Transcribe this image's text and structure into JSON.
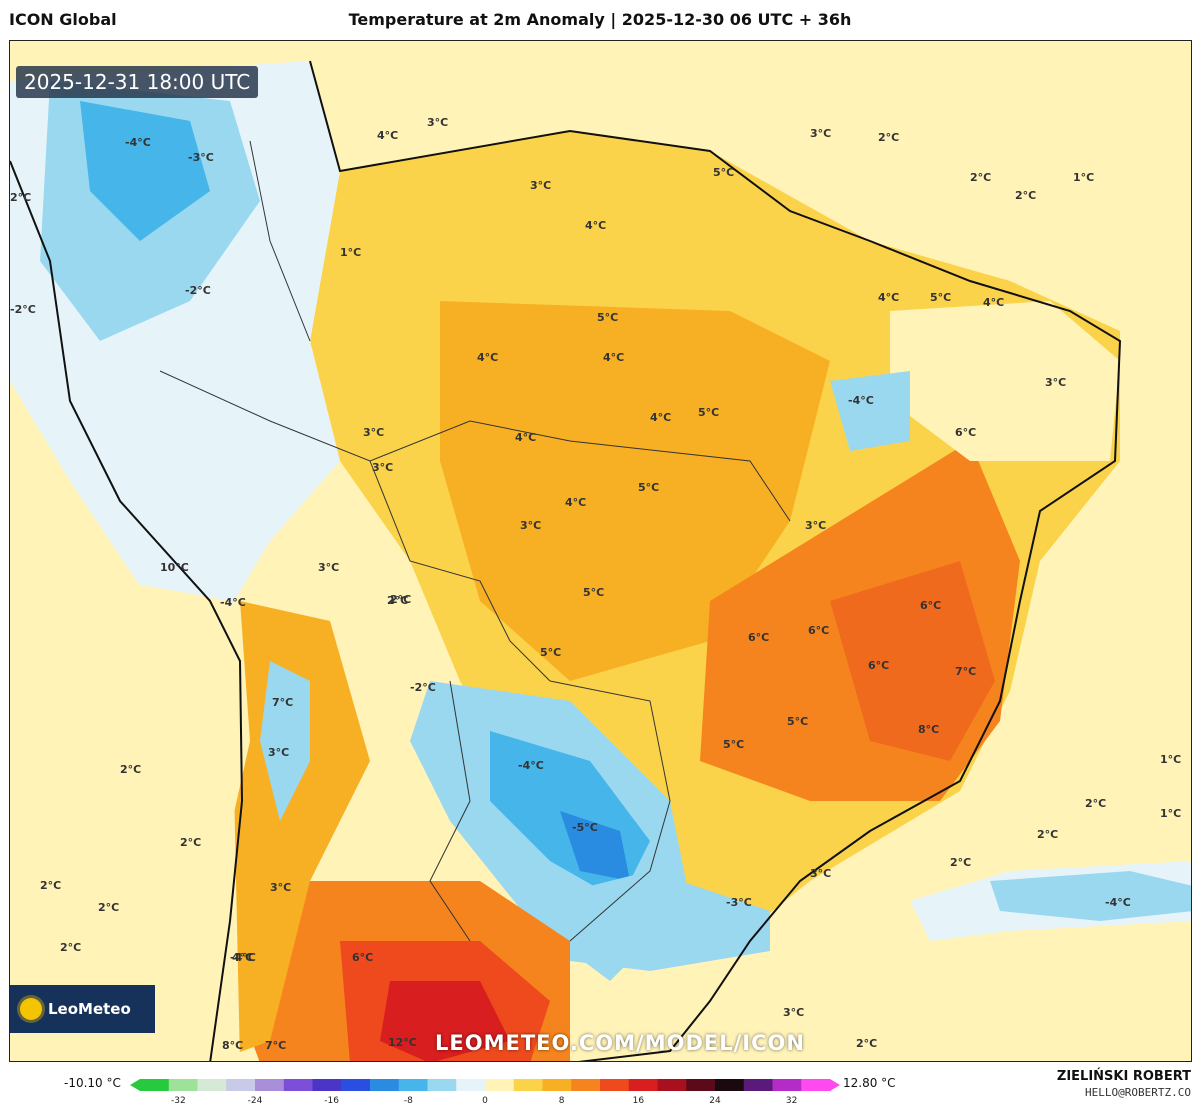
{
  "header": {
    "model": "ICON Global",
    "title": "Temperature at 2m Anomaly | 2025-12-30 06 UTC + 36h"
  },
  "map": {
    "valid_time": "2025-12-31 18:00 UTC",
    "watermark": "LEOMETEO.COM/MODEL/ICON",
    "logo_text": "LeoMeteo",
    "isotherm_labels": [
      "2°C",
      "-4°C",
      "-3°C",
      "1°C",
      "3°C",
      "-2°C",
      "4°C",
      "3°C",
      "3°C",
      "5°C",
      "4°C",
      "2°C",
      "2°C",
      "2°C",
      "1°C",
      "-2°C",
      "4°C",
      "5°C",
      "4°C",
      "4°C",
      "5°C",
      "4°C",
      "-4°C",
      "3°C",
      "4°C",
      "5°C",
      "6°C",
      "3°C",
      "3°C",
      "4°C",
      "5°C",
      "3°C",
      "4°C",
      "3°C",
      "10°C",
      "-4°C",
      "3°C",
      "2°C",
      "5°C",
      "5°C",
      "2°C",
      "6°C",
      "6°C",
      "6°C",
      "6°C",
      "7°C",
      "3°C",
      "-2°C",
      "7°C",
      "5°C",
      "5°C",
      "8°C",
      "2°C",
      "3°C",
      "-4°C",
      "2°C",
      "1°C",
      "2°C",
      "-5°C",
      "2°C",
      "1°C",
      "2°C",
      "-4°C",
      "2°C",
      "3°C",
      "-3°C",
      "2°C",
      "-4°C",
      "2°C",
      "6°C",
      "4°C",
      "3°C",
      "8°C",
      "7°C",
      "12°C",
      "2°C"
    ]
  },
  "colorbar": {
    "min_label": "-10.10 °C",
    "max_label": "12.80 °C",
    "ticks": [
      "-32",
      "-24",
      "-16",
      "-8",
      "0",
      "8",
      "16",
      "24",
      "32"
    ],
    "tick_values": [
      -32,
      -24,
      -16,
      -8,
      0,
      8,
      16,
      24,
      32
    ],
    "range": [
      -36,
      36
    ],
    "colors": [
      "#27c93f",
      "#9ee29a",
      "#d6e9d6",
      "#c9c9e8",
      "#a98fd8",
      "#7d4fd8",
      "#4b35c6",
      "#2a4fe0",
      "#2a8ce0",
      "#45b5ea",
      "#9ad8f0",
      "#e6f4fa",
      "#fff3b8",
      "#fbd34a",
      "#f7b023",
      "#f5841e",
      "#ee4a1e",
      "#d81e1e",
      "#a8101e",
      "#5a0a18",
      "#1a0a10",
      "#5a1a7a",
      "#b42cc8",
      "#ff4af0"
    ]
  },
  "footer": {
    "author": "ZIELIŃSKI ROBERT",
    "contact": "HELLO@ROBERTZ.CO"
  }
}
